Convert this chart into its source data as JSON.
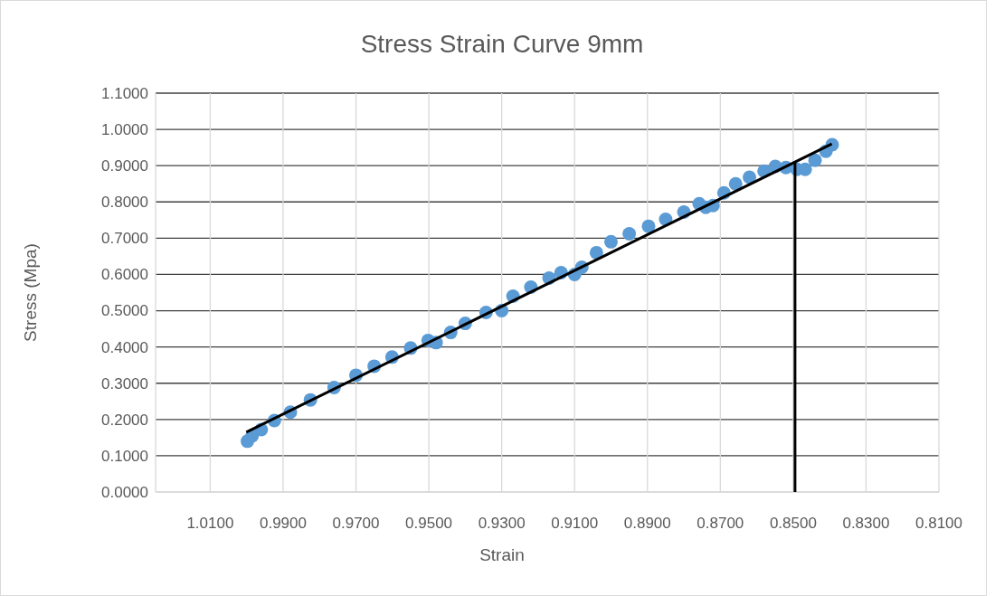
{
  "chart_data": {
    "type": "scatter",
    "title": "Stress Strain Curve 9mm",
    "xlabel": "Strain",
    "ylabel": "Stress (Mpa)",
    "xlim": [
      1.025,
      0.81
    ],
    "xticks": [
      {
        "value": 1.01,
        "label": "1.0100"
      },
      {
        "value": 0.99,
        "label": "0.9900"
      },
      {
        "value": 0.97,
        "label": "0.9700"
      },
      {
        "value": 0.95,
        "label": "0.9500"
      },
      {
        "value": 0.93,
        "label": "0.9300"
      },
      {
        "value": 0.91,
        "label": "0.9100"
      },
      {
        "value": 0.89,
        "label": "0.8900"
      },
      {
        "value": 0.87,
        "label": "0.8700"
      },
      {
        "value": 0.85,
        "label": "0.8500"
      },
      {
        "value": 0.83,
        "label": "0.8300"
      },
      {
        "value": 0.81,
        "label": "0.8100"
      }
    ],
    "ylim": [
      0,
      1.1
    ],
    "yticks": [
      {
        "value": 0,
        "label": "0.0000"
      },
      {
        "value": 0.1,
        "label": "0.1000"
      },
      {
        "value": 0.2,
        "label": "0.2000"
      },
      {
        "value": 0.3,
        "label": "0.3000"
      },
      {
        "value": 0.4,
        "label": "0.4000"
      },
      {
        "value": 0.5,
        "label": "0.5000"
      },
      {
        "value": 0.6,
        "label": "0.6000"
      },
      {
        "value": 0.7,
        "label": "0.7000"
      },
      {
        "value": 0.8,
        "label": "0.8000"
      },
      {
        "value": 0.9,
        "label": "0.9000"
      },
      {
        "value": 1.0,
        "label": "1.0000"
      },
      {
        "value": 1.1,
        "label": "1.1000"
      }
    ],
    "grid": true,
    "series": [
      {
        "marker": "circle",
        "color": "#5b9bd5",
        "x": [
          0.9998,
          0.9985,
          0.996,
          0.9924,
          0.988,
          0.9825,
          0.976,
          0.97,
          0.965,
          0.9601,
          0.955,
          0.9502,
          0.948,
          0.944,
          0.94,
          0.9343,
          0.93,
          0.9269,
          0.922,
          0.917,
          0.9137,
          0.91,
          0.908,
          0.904,
          0.9,
          0.895,
          0.8897,
          0.885,
          0.88,
          0.8758,
          0.874,
          0.872,
          0.869,
          0.8658,
          0.862,
          0.858,
          0.8549,
          0.852,
          0.849,
          0.8467,
          0.844,
          0.841,
          0.8393
        ],
        "values": [
          0.14,
          0.155,
          0.172,
          0.197,
          0.22,
          0.254,
          0.288,
          0.322,
          0.347,
          0.372,
          0.397,
          0.418,
          0.412,
          0.44,
          0.465,
          0.495,
          0.5,
          0.54,
          0.565,
          0.59,
          0.605,
          0.6,
          0.62,
          0.66,
          0.69,
          0.712,
          0.733,
          0.752,
          0.772,
          0.795,
          0.785,
          0.79,
          0.825,
          0.85,
          0.868,
          0.885,
          0.898,
          0.895,
          0.89,
          0.89,
          0.915,
          0.94,
          0.958
        ]
      },
      {
        "type": "line",
        "color": "#000000",
        "x": [
          1.0001,
          0.8394
        ],
        "values": [
          0.165,
          0.96
        ]
      },
      {
        "type": "line",
        "color": "#000000",
        "x": [
          0.8495,
          0.8495
        ],
        "values": [
          0,
          0.912
        ]
      }
    ]
  }
}
